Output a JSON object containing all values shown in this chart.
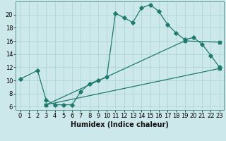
{
  "xlabel": "Humidex (Indice chaleur)",
  "bg_color": "#cde8ea",
  "grid_color": "#b0d4d8",
  "line_color": "#1e7a6e",
  "xlim": [
    -0.5,
    23.5
  ],
  "ylim": [
    5.5,
    22
  ],
  "xticks": [
    0,
    1,
    2,
    3,
    4,
    5,
    6,
    7,
    8,
    9,
    10,
    11,
    12,
    13,
    14,
    15,
    16,
    17,
    18,
    19,
    20,
    21,
    22,
    23
  ],
  "yticks": [
    6,
    8,
    10,
    12,
    14,
    16,
    18,
    20
  ],
  "curve1_x": [
    0,
    2,
    3,
    4,
    5,
    6,
    7,
    8,
    9,
    10,
    11,
    12,
    13,
    14,
    15,
    16,
    17,
    18,
    19,
    20,
    21,
    22,
    23
  ],
  "curve1_y": [
    10.2,
    11.5,
    7.0,
    6.3,
    6.3,
    6.3,
    8.3,
    9.5,
    10.0,
    10.5,
    20.2,
    19.5,
    18.8,
    21.0,
    21.5,
    20.5,
    18.5,
    17.2,
    16.2,
    16.5,
    15.5,
    13.8,
    12.0
  ],
  "curve2_x": [
    3,
    19,
    23
  ],
  "curve2_y": [
    6.3,
    16.0,
    15.8
  ],
  "curve3_x": [
    3,
    23
  ],
  "curve3_y": [
    6.3,
    11.8
  ],
  "axis_fontsize": 7,
  "tick_fontsize": 6
}
